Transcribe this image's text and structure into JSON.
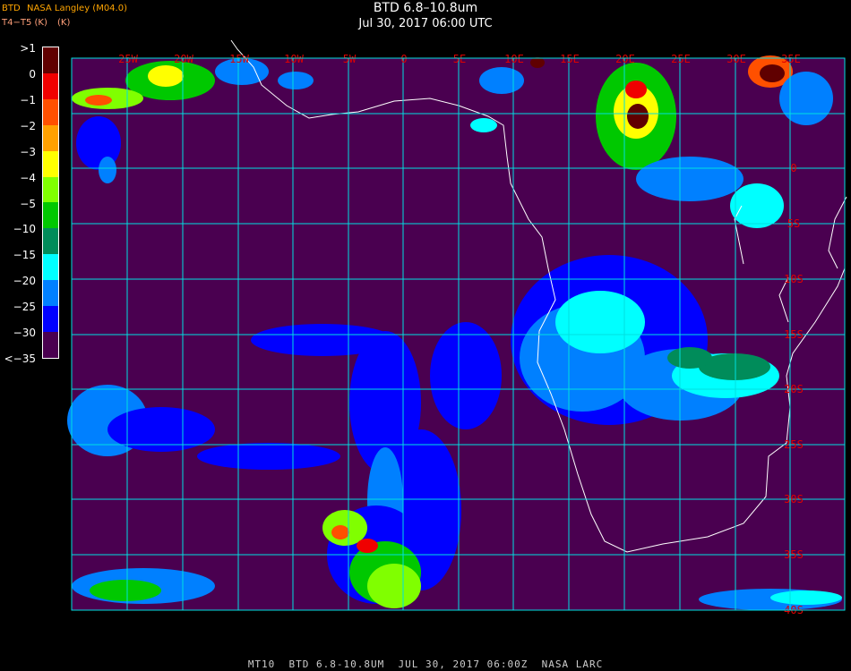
{
  "header": {
    "title": "BTD 6.8–10.8um",
    "datetime": "Jul 30, 2017 06:00 UTC"
  },
  "source_label": "NASA Langley (M04.0)",
  "source_overlap_label": "BTD",
  "unit_label": "T4−T5 (K)",
  "unit_overlap_label": "(K)",
  "legend": {
    "labels": [
      ">1",
      "0",
      "−1",
      "−2",
      "−3",
      "−4",
      "−5",
      "−10",
      "−15",
      "−20",
      "−25",
      "−30",
      "<−35"
    ],
    "colors": [
      "#600000",
      "#f00000",
      "#ff5000",
      "#ffa000",
      "#ffff00",
      "#80ff00",
      "#00c800",
      "#008c5a",
      "#00ffff",
      "#0080ff",
      "#0000ff",
      "#4a0050"
    ]
  },
  "map": {
    "background_color": "#4a0050",
    "grid_color": "#00e0e0",
    "longitude_labels": [
      "25W",
      "20W",
      "15W",
      "10W",
      "5W",
      "0",
      "5E",
      "10E",
      "15E",
      "20E",
      "25E",
      "30E",
      "35E"
    ],
    "latitude_labels": [
      "0",
      "5S",
      "10S",
      "15S",
      "20S",
      "25S",
      "30S",
      "35S",
      "40S"
    ]
  },
  "footer": "MT10  BTD 6.8-10.8UM  JUL 30, 2017 06:00Z  NASA LARC"
}
